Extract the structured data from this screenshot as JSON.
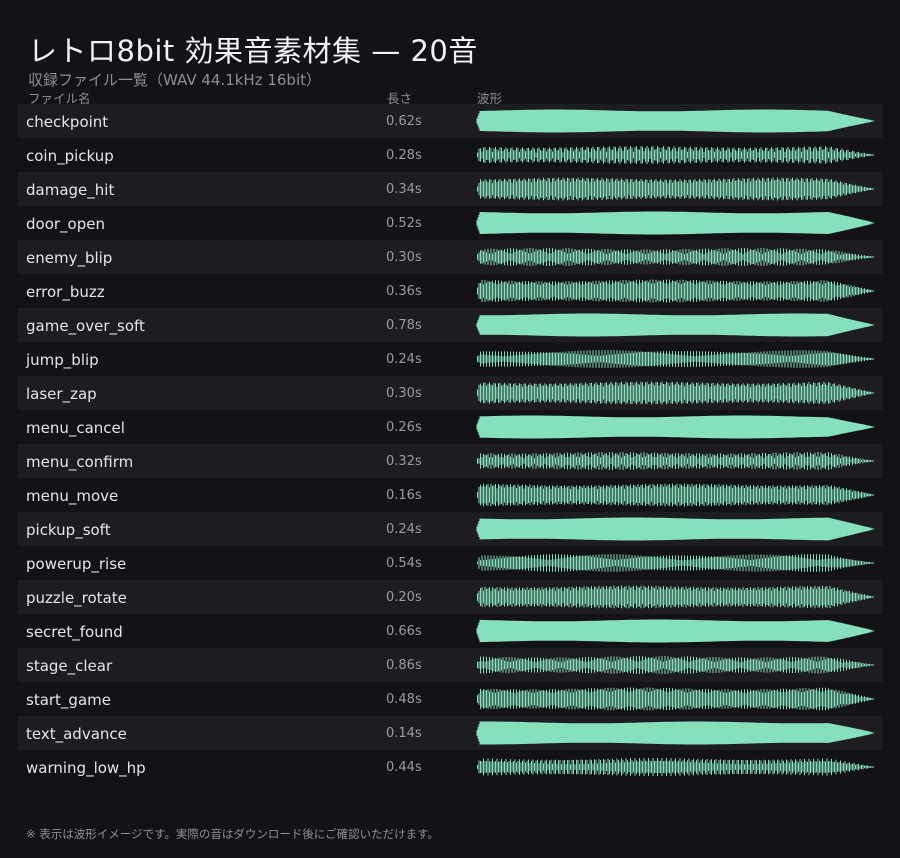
{
  "header": {
    "title": "レトロ8bit 効果音素材集 — 20音",
    "subtitle": "収録ファイル一覧（WAV 44.1kHz 16bit）"
  },
  "columns": {
    "name": "ファイル名",
    "length": "長さ",
    "waveform": "波形"
  },
  "colors": {
    "background": "#131317",
    "row_alt": "#1c1c21",
    "waveform": "#86e0bc"
  },
  "files": [
    {
      "name": "checkpoint",
      "length": "0.62s"
    },
    {
      "name": "coin_pickup",
      "length": "0.28s"
    },
    {
      "name": "damage_hit",
      "length": "0.34s"
    },
    {
      "name": "door_open",
      "length": "0.52s"
    },
    {
      "name": "enemy_blip",
      "length": "0.30s"
    },
    {
      "name": "error_buzz",
      "length": "0.36s"
    },
    {
      "name": "game_over_soft",
      "length": "0.78s"
    },
    {
      "name": "jump_blip",
      "length": "0.24s"
    },
    {
      "name": "laser_zap",
      "length": "0.30s"
    },
    {
      "name": "menu_cancel",
      "length": "0.26s"
    },
    {
      "name": "menu_confirm",
      "length": "0.32s"
    },
    {
      "name": "menu_move",
      "length": "0.16s"
    },
    {
      "name": "pickup_soft",
      "length": "0.24s"
    },
    {
      "name": "powerup_rise",
      "length": "0.54s"
    },
    {
      "name": "puzzle_rotate",
      "length": "0.20s"
    },
    {
      "name": "secret_found",
      "length": "0.66s"
    },
    {
      "name": "stage_clear",
      "length": "0.86s"
    },
    {
      "name": "start_game",
      "length": "0.48s"
    },
    {
      "name": "text_advance",
      "length": "0.14s"
    },
    {
      "name": "warning_low_hp",
      "length": "0.44s"
    }
  ],
  "footnote": "※ 表示は波形イメージです。実際の音はダウンロード後にご確認いただけます。"
}
